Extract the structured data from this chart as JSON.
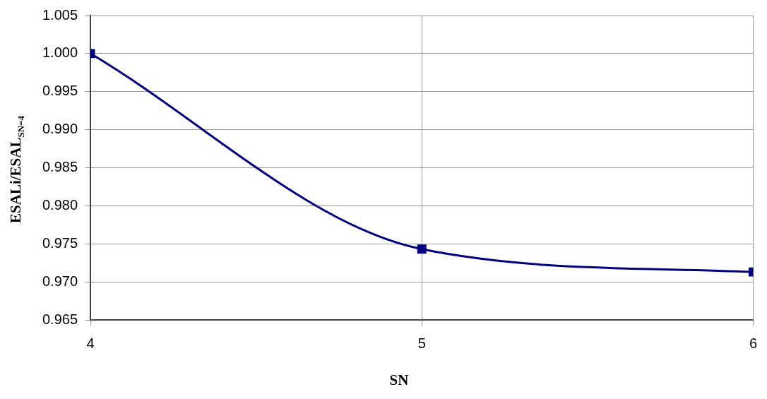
{
  "chart_data": {
    "type": "line",
    "xlabel": "SN",
    "ylabel": "ESALi/ESAL$_{SN=4}$",
    "x": [
      4,
      5,
      6
    ],
    "series": [
      {
        "color": "#000080",
        "values": [
          1.0,
          0.9743,
          0.9713
        ]
      }
    ],
    "xlim": [
      4,
      6
    ],
    "xticks": [
      4,
      5,
      6
    ],
    "ylim": [
      0.965,
      1.005
    ],
    "yticks": [
      0.965,
      {
        "value": 0.97,
        "label": "0.970"
      },
      0.975,
      {
        "value": 0.98,
        "label": "0.980"
      },
      0.985,
      {
        "value": 0.99,
        "label": "0.990"
      },
      0.995,
      {
        "value": 1,
        "label": "1.000"
      },
      1.005
    ],
    "grid": true,
    "legend": false,
    "marker": "square",
    "line_style": "solid"
  }
}
